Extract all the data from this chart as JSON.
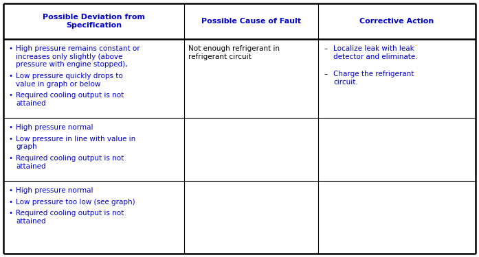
{
  "figsize": [
    6.97,
    3.75
  ],
  "dpi": 100,
  "bg_color": "#ffffff",
  "border_color": "#000000",
  "text_color_blue": "#0000cd",
  "text_color_black": "#000000",
  "header_font_size": 8.0,
  "body_font_size": 7.5,
  "headers": [
    "Possible Deviation from\nSpecification",
    "Possible Cause of Fault",
    "Corrective Action"
  ],
  "col1_rows": [
    [
      "High pressure remains constant or increases only slightly (above pressure with engine stopped),",
      "Low pressure quickly drops to value in graph or below",
      "Required cooling output is not attained"
    ],
    [
      "High pressure normal",
      "Low pressure in line with value in graph",
      "Required cooling output is not attained"
    ],
    [
      "High pressure normal",
      "Low pressure too low (see graph)",
      "Required cooling output is not attained"
    ]
  ],
  "col2_rows": [
    [
      "Not enough refrigerant in refrigerant circuit"
    ],
    [],
    []
  ],
  "col3_rows": [
    [
      "Localize leak with leak detector and eliminate.",
      "Charge the refrigerant circuit."
    ],
    [],
    []
  ]
}
